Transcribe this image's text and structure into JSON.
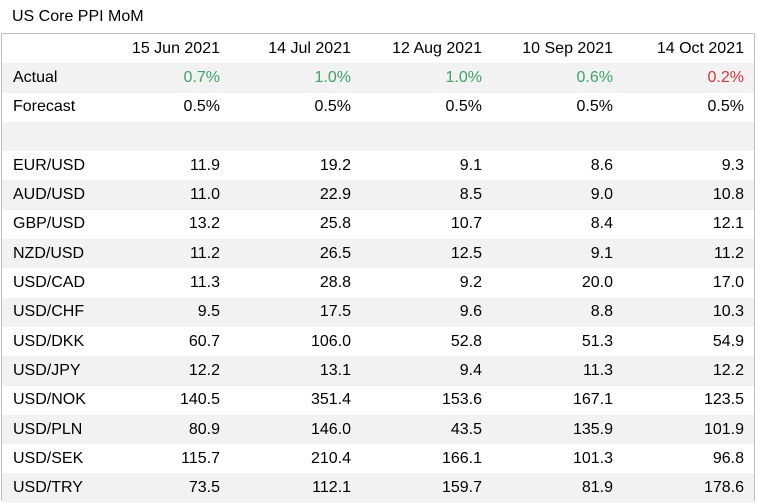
{
  "title": "US Core PPI MoM",
  "colors": {
    "positive": "#3aa568",
    "negative": "#d9353a",
    "stripe": "#f2f2f2",
    "border": "#bfbfbf"
  },
  "header": {
    "dates": [
      "15 Jun 2021",
      "14 Jul 2021",
      "12 Aug 2021",
      "10 Sep 2021",
      "14 Oct 2021"
    ]
  },
  "actual": {
    "label": "Actual",
    "values": [
      "0.7%",
      "1.0%",
      "1.0%",
      "0.6%",
      "0.2%"
    ],
    "status": [
      "positive",
      "positive",
      "positive",
      "positive",
      "negative"
    ]
  },
  "forecast": {
    "label": "Forecast",
    "values": [
      "0.5%",
      "0.5%",
      "0.5%",
      "0.5%",
      "0.5%"
    ]
  },
  "pairs": [
    {
      "label": "EUR/USD",
      "values": [
        "11.9",
        "19.2",
        "9.1",
        "8.6",
        "9.3"
      ]
    },
    {
      "label": "AUD/USD",
      "values": [
        "11.0",
        "22.9",
        "8.5",
        "9.0",
        "10.8"
      ]
    },
    {
      "label": "GBP/USD",
      "values": [
        "13.2",
        "25.8",
        "10.7",
        "8.4",
        "12.1"
      ]
    },
    {
      "label": "NZD/USD",
      "values": [
        "11.2",
        "26.5",
        "12.5",
        "9.1",
        "11.2"
      ]
    },
    {
      "label": "USD/CAD",
      "values": [
        "11.3",
        "28.8",
        "9.2",
        "20.0",
        "17.0"
      ]
    },
    {
      "label": "USD/CHF",
      "values": [
        "9.5",
        "17.5",
        "9.6",
        "8.8",
        "10.3"
      ]
    },
    {
      "label": "USD/DKK",
      "values": [
        "60.7",
        "106.0",
        "52.8",
        "51.3",
        "54.9"
      ]
    },
    {
      "label": "USD/JPY",
      "values": [
        "12.2",
        "13.1",
        "9.4",
        "11.3",
        "12.2"
      ]
    },
    {
      "label": "USD/NOK",
      "values": [
        "140.5",
        "351.4",
        "153.6",
        "167.1",
        "123.5"
      ]
    },
    {
      "label": "USD/PLN",
      "values": [
        "80.9",
        "146.0",
        "43.5",
        "135.9",
        "101.9"
      ]
    },
    {
      "label": "USD/SEK",
      "values": [
        "115.7",
        "210.4",
        "166.1",
        "101.3",
        "96.8"
      ]
    },
    {
      "label": "USD/TRY",
      "values": [
        "73.5",
        "112.1",
        "159.7",
        "81.9",
        "178.6"
      ]
    }
  ]
}
